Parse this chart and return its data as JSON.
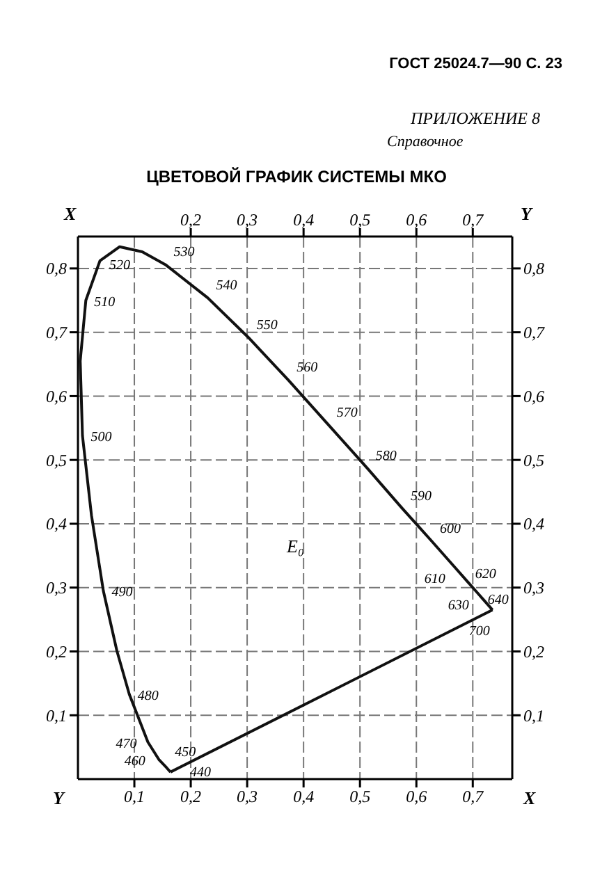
{
  "chart_data": {
    "type": "line",
    "title": "ЦВЕТОВОЙ ГРАФИК СИСТЕМЫ МКО",
    "xlabel": "X",
    "ylabel": "Y",
    "x2label": "X",
    "y2label": "Y",
    "series": [
      {
        "color": "#111111",
        "x": [
          0.164,
          0.157,
          0.144,
          0.124,
          0.091,
          0.069,
          0.045,
          0.024,
          0.008,
          0.004,
          0.014,
          0.039,
          0.074,
          0.114,
          0.155,
          0.23,
          0.302,
          0.373,
          0.444,
          0.513,
          0.575,
          0.627,
          0.666,
          0.692,
          0.708,
          0.719,
          0.735
        ],
        "values": [
          0.011,
          0.018,
          0.03,
          0.058,
          0.133,
          0.201,
          0.295,
          0.413,
          0.538,
          0.655,
          0.75,
          0.812,
          0.834,
          0.826,
          0.806,
          0.754,
          0.692,
          0.625,
          0.555,
          0.487,
          0.424,
          0.373,
          0.334,
          0.308,
          0.292,
          0.281,
          0.265
        ]
      },
      {
        "color": "#111111",
        "x": [
          0.735,
          0.164
        ],
        "values": [
          0.265,
          0.011
        ]
      }
    ],
    "xlim": [
      0,
      0.77
    ],
    "ylim": [
      0,
      0.85
    ],
    "x2lim": [
      0,
      0.77
    ],
    "y2lim": [
      0,
      0.85
    ],
    "xticks": [
      {
        "value": 0.1,
        "label": "0,1"
      },
      {
        "value": 0.2,
        "label": "0,2"
      },
      {
        "value": 0.3,
        "label": "0,3"
      },
      {
        "value": 0.4,
        "label": "0,4"
      },
      {
        "value": 0.5,
        "label": "0,5"
      },
      {
        "value": 0.6,
        "label": "0,6"
      },
      {
        "value": 0.7,
        "label": "0,7"
      }
    ],
    "x2ticks": [
      {
        "value": 0.2,
        "label": "0,2"
      },
      {
        "value": 0.3,
        "label": "0,3"
      },
      {
        "value": 0.4,
        "label": "0,4"
      },
      {
        "value": 0.5,
        "label": "0,5"
      },
      {
        "value": 0.6,
        "label": "0,6"
      },
      {
        "value": 0.7,
        "label": "0,7"
      }
    ],
    "yticks": [
      {
        "value": 0.1,
        "label": "0,1"
      },
      {
        "value": 0.2,
        "label": "0,2"
      },
      {
        "value": 0.3,
        "label": "0,3"
      },
      {
        "value": 0.4,
        "label": "0,4"
      },
      {
        "value": 0.5,
        "label": "0,5"
      },
      {
        "value": 0.6,
        "label": "0,6"
      },
      {
        "value": 0.7,
        "label": "0,7"
      },
      {
        "value": 0.8,
        "label": "0,8"
      }
    ],
    "y2ticks": [
      {
        "value": 0.1,
        "label": "0,1"
      },
      {
        "value": 0.2,
        "label": "0,2"
      },
      {
        "value": 0.3,
        "label": "0,3"
      },
      {
        "value": 0.4,
        "label": "0,4"
      },
      {
        "value": 0.5,
        "label": "0,5"
      },
      {
        "value": 0.6,
        "label": "0,6"
      },
      {
        "value": 0.7,
        "label": "0,7"
      },
      {
        "value": 0.8,
        "label": "0,8"
      }
    ],
    "grid": true,
    "marker": "none",
    "line_style": "solid",
    "annotations": [
      "ГОСТ 25024.7—90 С. 23",
      "ПРИЛОЖЕНИЕ 8",
      "Справочное",
      "E₀",
      {
        "text": "440",
        "x": 0.164,
        "y": 0.011
      },
      {
        "text": "450",
        "x": 0.157,
        "y": 0.018
      },
      {
        "text": "460",
        "x": 0.144,
        "y": 0.03
      },
      {
        "text": "470",
        "x": 0.124,
        "y": 0.058
      },
      {
        "text": "480",
        "x": 0.091,
        "y": 0.133
      },
      {
        "text": "490",
        "x": 0.045,
        "y": 0.295
      },
      {
        "text": "500",
        "x": 0.008,
        "y": 0.538
      },
      {
        "text": "510",
        "x": 0.014,
        "y": 0.75
      },
      {
        "text": "520",
        "x": 0.074,
        "y": 0.834
      },
      {
        "text": "530",
        "x": 0.155,
        "y": 0.806
      },
      {
        "text": "540",
        "x": 0.23,
        "y": 0.754
      },
      {
        "text": "550",
        "x": 0.302,
        "y": 0.692
      },
      {
        "text": "560",
        "x": 0.373,
        "y": 0.625
      },
      {
        "text": "570",
        "x": 0.444,
        "y": 0.555
      },
      {
        "text": "580",
        "x": 0.513,
        "y": 0.487
      },
      {
        "text": "590",
        "x": 0.575,
        "y": 0.424
      },
      {
        "text": "600",
        "x": 0.627,
        "y": 0.373
      },
      {
        "text": "610",
        "x": 0.666,
        "y": 0.334
      },
      {
        "text": "620",
        "x": 0.692,
        "y": 0.308
      },
      {
        "text": "630",
        "x": 0.708,
        "y": 0.292
      },
      {
        "text": "640",
        "x": 0.719,
        "y": 0.281
      },
      {
        "text": "700",
        "x": 0.735,
        "y": 0.265
      }
    ]
  }
}
